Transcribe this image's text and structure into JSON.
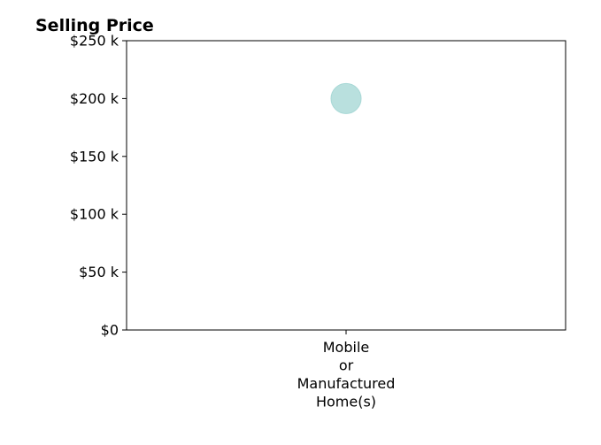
{
  "chart_data": {
    "type": "scatter",
    "title": "Selling Price",
    "xlabel": "",
    "ylabel": "",
    "categories": [
      "Mobile\nor\nManufactured\nHome(s)"
    ],
    "values": [
      200000
    ],
    "ylim": [
      0,
      250000
    ],
    "yticks": [
      {
        "value": 0,
        "label": "$0"
      },
      {
        "value": 50000,
        "label": "$50 k"
      },
      {
        "value": 100000,
        "label": "$100 k"
      },
      {
        "value": 150000,
        "label": "$150 k"
      },
      {
        "value": 200000,
        "label": "$200 k"
      },
      {
        "value": 250000,
        "label": "$250 k"
      }
    ],
    "grid": false,
    "marker_color": "#a8d8d6"
  }
}
